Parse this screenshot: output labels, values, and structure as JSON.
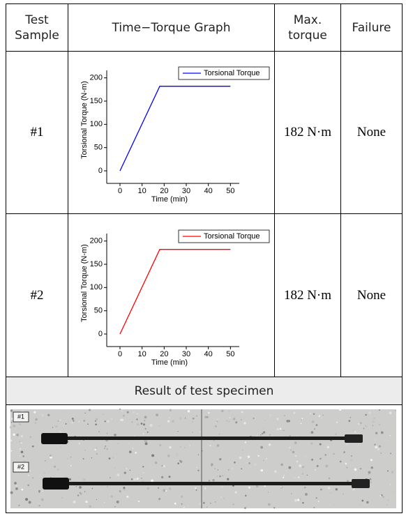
{
  "table": {
    "header": [
      "Test Sample",
      "Time−Torque Graph",
      "Max. torque",
      "Failure"
    ],
    "rows": [
      {
        "sample": "#1",
        "graph": {
          "type": "line",
          "x_label": "Time (min)",
          "y_label": "Torsional Torque (N-m)",
          "x": [
            0,
            18,
            50
          ],
          "series": [
            {
              "name": "Torsional Torque",
              "color": "#0000ff",
              "values": [
                0,
                182,
                182
              ]
            }
          ],
          "xlim": [
            -6,
            54
          ],
          "ylim": [
            -27,
            216
          ],
          "xticks": [
            0,
            10,
            20,
            30,
            40,
            50
          ],
          "yticks": [
            0,
            50,
            100,
            150,
            200
          ]
        },
        "max_torque": "182 N·m",
        "failure": "None"
      },
      {
        "sample": "#2",
        "graph": {
          "type": "line",
          "x_label": "Time (min)",
          "y_label": "Torsional Torque (N-m)",
          "x": [
            0,
            18,
            50
          ],
          "series": [
            {
              "name": "Torsional Torque",
              "color": "#ff0000",
              "values": [
                0,
                182,
                182
              ]
            }
          ],
          "xlim": [
            -6,
            54
          ],
          "ylim": [
            -27,
            216
          ],
          "xticks": [
            0,
            10,
            20,
            30,
            40,
            50
          ],
          "yticks": [
            0,
            50,
            100,
            150,
            200
          ]
        },
        "max_torque": "182 N·m",
        "failure": "None"
      }
    ],
    "result_title": "Result of test specimen",
    "photo_labels": [
      "#1",
      "#2"
    ]
  }
}
